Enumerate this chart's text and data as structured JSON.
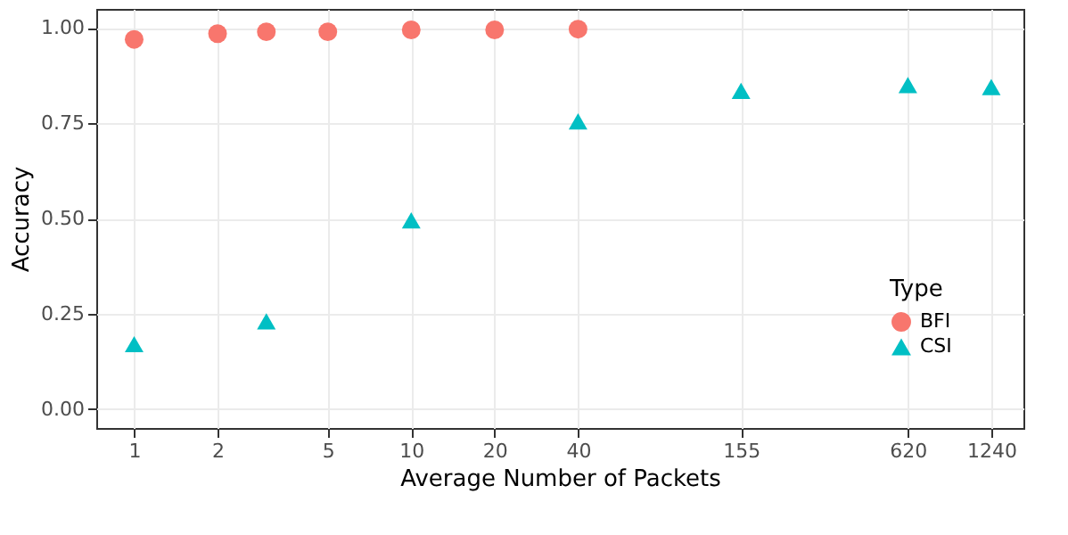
{
  "chart_data": {
    "type": "scatter",
    "xlabel": "Average Number of Packets",
    "ylabel": "Accuracy",
    "legend_title": "Type",
    "series": [
      {
        "name": "BFI",
        "color": "#f8766d",
        "marker": "circle",
        "x": [
          1,
          2,
          3,
          5,
          10,
          20,
          40
        ],
        "values": [
          0.97,
          0.985,
          0.99,
          0.99,
          0.995,
          0.995,
          0.997
        ]
      },
      {
        "name": "CSI",
        "color": "#00bfc4",
        "marker": "triangle",
        "x": [
          1,
          3,
          10,
          40,
          155,
          620,
          1240
        ],
        "values": [
          0.17,
          0.23,
          0.495,
          0.755,
          0.835,
          0.85,
          0.845
        ]
      }
    ],
    "log": "x",
    "xlim": [
      0.73,
      1620
    ],
    "xticks": [
      1,
      2,
      5,
      10,
      20,
      40,
      155,
      620,
      1240
    ],
    "ylim": [
      -0.05,
      1.05
    ],
    "yticks": [
      {
        "value": 0,
        "label": "0.00"
      },
      {
        "value": 0.25,
        "label": "0.25"
      },
      {
        "value": 0.5,
        "label": "0.50"
      },
      {
        "value": 0.75,
        "label": "0.75"
      },
      {
        "value": 1,
        "label": "1.00"
      }
    ],
    "grid": true,
    "legend": "bottom right"
  }
}
